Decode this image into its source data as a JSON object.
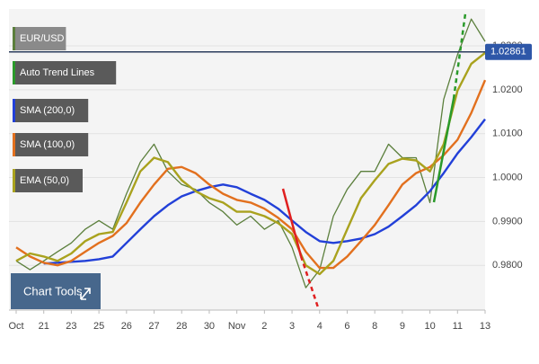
{
  "chart_data": {
    "type": "line",
    "legend": [
      "EUR/USD",
      "Auto Trend Lines",
      "SMA (200,0)",
      "SMA (100,0)",
      "EMA (50,0)"
    ],
    "tools_label": "Chart Tools",
    "last_price": 1.02861,
    "categories": [
      "Oct",
      null,
      "21",
      null,
      "23",
      null,
      "25",
      null,
      "26",
      null,
      "27",
      null,
      "28",
      null,
      "30",
      null,
      "Nov",
      null,
      "2",
      null,
      "3",
      null,
      "4",
      null,
      "6",
      null,
      "8",
      null,
      "9",
      null,
      "10",
      null,
      "11",
      null,
      "13"
    ],
    "ylim": [
      0.9698,
      1.0384
    ],
    "yticks": [
      {
        "value": 0.98,
        "label": "0.9800"
      },
      {
        "value": 0.99,
        "label": "0.9900"
      },
      {
        "value": 1.0,
        "label": "1.0000"
      },
      {
        "value": 1.01,
        "label": "1.0100"
      },
      {
        "value": 1.02,
        "label": "1.0200"
      },
      {
        "value": 1.03,
        "label": "1.0300"
      }
    ],
    "grid": true,
    "series": [
      {
        "name": "EUR/USD",
        "color": "#5b7f3c",
        "values": [
          0.981,
          0.979,
          0.981,
          0.9831,
          0.9851,
          0.9882,
          0.9902,
          0.9882,
          0.9963,
          1.0035,
          1.0076,
          1.0014,
          0.9984,
          0.9973,
          0.9943,
          0.9922,
          0.9892,
          0.9912,
          0.9882,
          0.9902,
          0.9841,
          0.9749,
          0.979,
          0.9912,
          0.9973,
          1.0014,
          1.0014,
          1.0076,
          1.0045,
          1.0045,
          0.9943,
          1.0178,
          1.028,
          1.0361,
          1.031
        ]
      },
      {
        "name": "SMA (200,0)",
        "color": "#2240d8",
        "values": [
          null,
          null,
          0.9804,
          0.9806,
          0.9808,
          0.981,
          0.9814,
          0.982,
          0.9851,
          0.9882,
          0.9912,
          0.9937,
          0.9957,
          0.9969,
          0.9978,
          0.9984,
          0.9978,
          0.9963,
          0.9949,
          0.9929,
          0.9902,
          0.9876,
          0.9855,
          0.9851,
          0.9855,
          0.9861,
          0.9871,
          0.9888,
          0.9912,
          0.9937,
          0.9969,
          1.001,
          1.0055,
          1.0092,
          1.0133
        ]
      },
      {
        "name": "SMA (100,0)",
        "color": "#e2701e",
        "values": [
          0.9841,
          0.982,
          0.9806,
          0.98,
          0.981,
          0.9831,
          0.9851,
          0.9867,
          0.9896,
          0.9943,
          0.9984,
          1.002,
          1.0024,
          1.001,
          0.9984,
          0.9963,
          0.9949,
          0.9943,
          0.9929,
          0.9908,
          0.9882,
          0.9831,
          0.9794,
          0.9794,
          0.982,
          0.9855,
          0.9892,
          0.9937,
          0.9984,
          1.001,
          1.0024,
          1.0051,
          1.0086,
          1.0147,
          1.0222
        ]
      },
      {
        "name": "EMA (50,0)",
        "color": "#a9a21e",
        "values": [
          0.981,
          0.9827,
          0.982,
          0.981,
          0.9827,
          0.9855,
          0.9871,
          0.9876,
          0.9943,
          1.0014,
          1.0045,
          1.0035,
          0.9994,
          0.9969,
          0.9953,
          0.9943,
          0.9922,
          0.9922,
          0.9912,
          0.9896,
          0.9871,
          0.98,
          0.978,
          0.981,
          0.9882,
          0.9953,
          0.9994,
          1.0031,
          1.0043,
          1.0039,
          1.0014,
          1.0076,
          1.0198,
          1.0259,
          1.0284
        ]
      }
    ]
  }
}
